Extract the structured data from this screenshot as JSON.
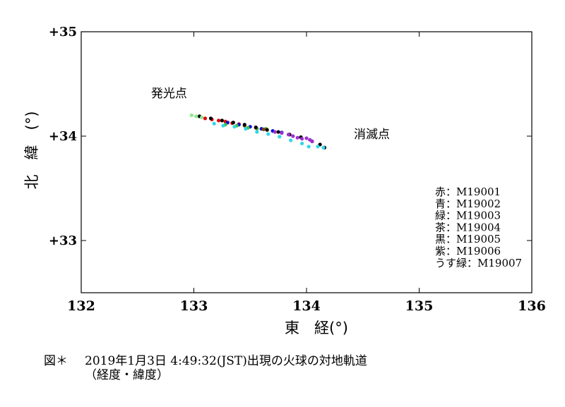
{
  "chart_data": {
    "type": "scatter",
    "xlabel": "東　経(°)",
    "ylabel": "北　緯　(°)",
    "xlim": [
      132,
      136
    ],
    "ylim": [
      32.5,
      35
    ],
    "x_ticks": [
      {
        "value": 132,
        "label": "132"
      },
      {
        "value": 133,
        "label": "133"
      },
      {
        "value": 134,
        "label": "134"
      },
      {
        "value": 135,
        "label": "135"
      },
      {
        "value": 136,
        "label": "136"
      }
    ],
    "y_ticks": [
      {
        "value": 35,
        "label": "+35"
      },
      {
        "value": 34,
        "label": "+34"
      },
      {
        "value": 33,
        "label": "+33"
      }
    ],
    "annotations": [
      {
        "text": "発光点",
        "x": 132.62,
        "y": 34.37
      },
      {
        "text": "消滅点",
        "x": 134.42,
        "y": 33.98
      }
    ],
    "legend": {
      "placement": "bottom-right",
      "entries": [
        "赤：M19001",
        "青：M19002",
        "緑：M19003",
        "茶：M19004",
        "黒：M19005",
        "紫：M19006",
        "うす緑：M19007"
      ]
    },
    "series": [
      {
        "color": "#e00000",
        "points": [
          [
            133.1,
            34.17
          ],
          [
            133.16,
            34.16
          ],
          [
            133.22,
            34.15
          ],
          [
            133.28,
            34.14
          ],
          [
            133.34,
            34.125
          ],
          [
            133.4,
            34.115
          ]
        ]
      },
      {
        "color": "#1010d0",
        "points": [
          [
            133.3,
            34.13
          ],
          [
            133.4,
            34.11
          ],
          [
            133.5,
            34.09
          ],
          [
            133.6,
            34.07
          ],
          [
            133.7,
            34.05
          ],
          [
            133.78,
            34.035
          ]
        ]
      },
      {
        "color": "#40c040",
        "points": [
          [
            133.28,
            34.11
          ],
          [
            133.38,
            34.1
          ],
          [
            133.48,
            34.08
          ],
          [
            133.56,
            34.07
          ],
          [
            133.64,
            34.07
          ],
          [
            133.72,
            34.04
          ]
        ]
      },
      {
        "color": "#8b4513",
        "points": [
          [
            133.45,
            34.1
          ],
          [
            133.55,
            34.08
          ],
          [
            133.62,
            34.065
          ]
        ]
      },
      {
        "color": "#000000",
        "points": [
          [
            133.05,
            34.19
          ],
          [
            133.15,
            34.17
          ],
          [
            133.25,
            34.15
          ],
          [
            133.35,
            34.13
          ],
          [
            133.45,
            34.11
          ],
          [
            133.55,
            34.085
          ],
          [
            133.65,
            34.06
          ],
          [
            133.75,
            34.04
          ],
          [
            133.85,
            34.015
          ],
          [
            133.95,
            33.99
          ],
          [
            134.05,
            33.95
          ],
          [
            134.12,
            33.92
          ],
          [
            134.16,
            33.89
          ]
        ]
      },
      {
        "color": "#9b30d0",
        "points": [
          [
            133.72,
            34.04
          ],
          [
            133.78,
            34.03
          ],
          [
            133.84,
            34.015
          ],
          [
            133.88,
            34.0
          ],
          [
            133.92,
            33.985
          ],
          [
            133.96,
            33.975
          ],
          [
            134.0,
            33.98
          ],
          [
            134.03,
            33.965
          ],
          [
            134.05,
            33.95
          ]
        ]
      },
      {
        "color": "#30d8e8",
        "points": [
          [
            133.18,
            34.12
          ],
          [
            133.26,
            34.1
          ],
          [
            133.36,
            34.09
          ],
          [
            133.46,
            34.07
          ],
          [
            133.56,
            34.04
          ],
          [
            133.66,
            34.02
          ],
          [
            133.76,
            33.995
          ],
          [
            133.86,
            33.96
          ],
          [
            133.96,
            33.93
          ],
          [
            134.02,
            33.9
          ],
          [
            134.1,
            33.9
          ],
          [
            134.15,
            33.89
          ]
        ]
      },
      {
        "color": "#90e890",
        "points": [
          [
            132.98,
            34.2
          ],
          [
            133.02,
            34.19
          ],
          [
            133.07,
            34.18
          ]
        ]
      }
    ]
  },
  "caption": {
    "fig_label": "図＊",
    "line1": "2019年1月3日 4:49:32(JST)出現の火球の対地軌道",
    "line2": "（経度・緯度）"
  }
}
